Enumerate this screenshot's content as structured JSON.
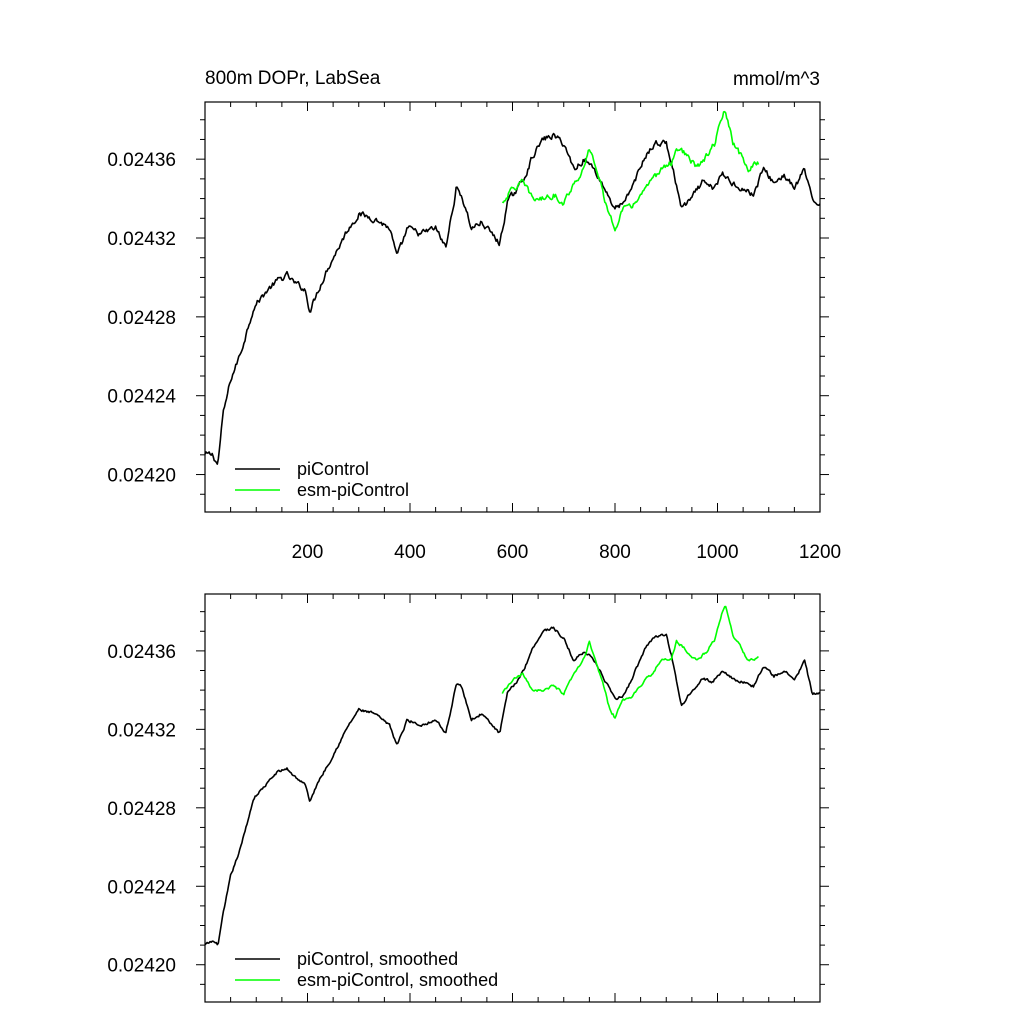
{
  "title_left": "800m DOPr, LabSea",
  "title_right": "mmol/m^3",
  "chart_data": [
    {
      "type": "line",
      "xlim": [
        0,
        1200
      ],
      "ylim": [
        0.024181,
        0.024389
      ],
      "x_ticks": [
        "200",
        "400",
        "600",
        "800",
        "1000",
        "1200"
      ],
      "y_ticks": [
        "0.02420",
        "0.02424",
        "0.02428",
        "0.02432",
        "0.02436"
      ],
      "legend_position": "bottom-left",
      "series": [
        {
          "name": "piControl",
          "color": "#000000",
          "noise": 1.3e-06,
          "points": [
            [
              0,
              0.02421
            ],
            [
              15,
              0.02421
            ],
            [
              25,
              0.024205
            ],
            [
              35,
              0.02423
            ],
            [
              50,
              0.024248
            ],
            [
              70,
              0.024262
            ],
            [
              95,
              0.024285
            ],
            [
              120,
              0.024293
            ],
            [
              140,
              0.024298
            ],
            [
              160,
              0.024301
            ],
            [
              175,
              0.024297
            ],
            [
              195,
              0.024294
            ],
            [
              205,
              0.024283
            ],
            [
              220,
              0.024293
            ],
            [
              240,
              0.024305
            ],
            [
              260,
              0.024315
            ],
            [
              280,
              0.024325
            ],
            [
              300,
              0.024332
            ],
            [
              330,
              0.02433
            ],
            [
              360,
              0.024325
            ],
            [
              375,
              0.02431
            ],
            [
              395,
              0.024325
            ],
            [
              420,
              0.024322
            ],
            [
              450,
              0.024325
            ],
            [
              470,
              0.024315
            ],
            [
              490,
              0.024345
            ],
            [
              500,
              0.024342
            ],
            [
              520,
              0.024325
            ],
            [
              540,
              0.024328
            ],
            [
              560,
              0.024322
            ],
            [
              575,
              0.024317
            ],
            [
              590,
              0.024338
            ],
            [
              610,
              0.024345
            ],
            [
              625,
              0.024352
            ],
            [
              640,
              0.024362
            ],
            [
              660,
              0.02437
            ],
            [
              680,
              0.024372
            ],
            [
              700,
              0.024368
            ],
            [
              720,
              0.024355
            ],
            [
              740,
              0.02436
            ],
            [
              760,
              0.024355
            ],
            [
              780,
              0.024345
            ],
            [
              800,
              0.024335
            ],
            [
              820,
              0.024338
            ],
            [
              840,
              0.02435
            ],
            [
              860,
              0.024362
            ],
            [
              880,
              0.024368
            ],
            [
              900,
              0.024368
            ],
            [
              910,
              0.024358
            ],
            [
              930,
              0.024335
            ],
            [
              950,
              0.02434
            ],
            [
              970,
              0.024348
            ],
            [
              990,
              0.024345
            ],
            [
              1010,
              0.024352
            ],
            [
              1030,
              0.024348
            ],
            [
              1050,
              0.024345
            ],
            [
              1070,
              0.024342
            ],
            [
              1090,
              0.024355
            ],
            [
              1110,
              0.024348
            ],
            [
              1130,
              0.024352
            ],
            [
              1150,
              0.024345
            ],
            [
              1170,
              0.024355
            ],
            [
              1185,
              0.024338
            ],
            [
              1200,
              0.024338
            ]
          ]
        },
        {
          "name": "esm-piControl",
          "color": "#00ff00",
          "noise": 1.3e-06,
          "points": [
            [
              580,
              0.024338
            ],
            [
              600,
              0.024345
            ],
            [
              620,
              0.024348
            ],
            [
              640,
              0.02434
            ],
            [
              660,
              0.02434
            ],
            [
              680,
              0.024342
            ],
            [
              700,
              0.024338
            ],
            [
              720,
              0.024348
            ],
            [
              740,
              0.024355
            ],
            [
              750,
              0.024365
            ],
            [
              760,
              0.024358
            ],
            [
              775,
              0.024345
            ],
            [
              790,
              0.02433
            ],
            [
              800,
              0.024325
            ],
            [
              815,
              0.024335
            ],
            [
              830,
              0.024335
            ],
            [
              850,
              0.024342
            ],
            [
              870,
              0.024348
            ],
            [
              890,
              0.024355
            ],
            [
              910,
              0.024358
            ],
            [
              920,
              0.024366
            ],
            [
              940,
              0.024362
            ],
            [
              960,
              0.024355
            ],
            [
              980,
              0.024362
            ],
            [
              995,
              0.024368
            ],
            [
              1005,
              0.024378
            ],
            [
              1015,
              0.024385
            ],
            [
              1030,
              0.024368
            ],
            [
              1045,
              0.024362
            ],
            [
              1060,
              0.024355
            ],
            [
              1080,
              0.024358
            ]
          ]
        }
      ]
    },
    {
      "type": "line",
      "xlim": [
        0,
        1200
      ],
      "ylim": [
        0.024181,
        0.024389
      ],
      "y_ticks": [
        "0.02420",
        "0.02424",
        "0.02428",
        "0.02432",
        "0.02436"
      ],
      "legend_position": "bottom-left",
      "series": [
        {
          "name": "piControl, smoothed",
          "color": "#000000",
          "noise": 6e-07,
          "points": [
            [
              0,
              0.02421
            ],
            [
              15,
              0.024212
            ],
            [
              25,
              0.02421
            ],
            [
              35,
              0.024225
            ],
            [
              50,
              0.024245
            ],
            [
              70,
              0.02426
            ],
            [
              95,
              0.024285
            ],
            [
              120,
              0.024292
            ],
            [
              140,
              0.024298
            ],
            [
              160,
              0.0243
            ],
            [
              175,
              0.024296
            ],
            [
              195,
              0.024292
            ],
            [
              205,
              0.024283
            ],
            [
              220,
              0.024293
            ],
            [
              240,
              0.024302
            ],
            [
              260,
              0.024312
            ],
            [
              280,
              0.024322
            ],
            [
              300,
              0.02433
            ],
            [
              330,
              0.024328
            ],
            [
              360,
              0.024322
            ],
            [
              375,
              0.024312
            ],
            [
              395,
              0.024325
            ],
            [
              420,
              0.024322
            ],
            [
              450,
              0.024325
            ],
            [
              470,
              0.024318
            ],
            [
              490,
              0.024343
            ],
            [
              500,
              0.024342
            ],
            [
              520,
              0.024325
            ],
            [
              540,
              0.024328
            ],
            [
              560,
              0.024322
            ],
            [
              575,
              0.024318
            ],
            [
              590,
              0.024338
            ],
            [
              610,
              0.024345
            ],
            [
              625,
              0.024352
            ],
            [
              640,
              0.024362
            ],
            [
              660,
              0.02437
            ],
            [
              680,
              0.024372
            ],
            [
              700,
              0.024366
            ],
            [
              720,
              0.024355
            ],
            [
              740,
              0.02436
            ],
            [
              760,
              0.024355
            ],
            [
              780,
              0.024345
            ],
            [
              800,
              0.024335
            ],
            [
              820,
              0.024338
            ],
            [
              840,
              0.02435
            ],
            [
              860,
              0.024362
            ],
            [
              880,
              0.024368
            ],
            [
              900,
              0.024368
            ],
            [
              910,
              0.024358
            ],
            [
              930,
              0.024332
            ],
            [
              950,
              0.02434
            ],
            [
              970,
              0.024346
            ],
            [
              990,
              0.024344
            ],
            [
              1010,
              0.02435
            ],
            [
              1030,
              0.024346
            ],
            [
              1050,
              0.024344
            ],
            [
              1070,
              0.024342
            ],
            [
              1090,
              0.024352
            ],
            [
              1110,
              0.024347
            ],
            [
              1130,
              0.02435
            ],
            [
              1150,
              0.024345
            ],
            [
              1170,
              0.024355
            ],
            [
              1185,
              0.024338
            ],
            [
              1200,
              0.024338
            ]
          ]
        },
        {
          "name": "esm-piControl, smoothed",
          "color": "#00ff00",
          "noise": 6e-07,
          "points": [
            [
              580,
              0.024338
            ],
            [
              600,
              0.024345
            ],
            [
              620,
              0.024348
            ],
            [
              640,
              0.02434
            ],
            [
              660,
              0.02434
            ],
            [
              680,
              0.024342
            ],
            [
              700,
              0.024338
            ],
            [
              720,
              0.024348
            ],
            [
              740,
              0.024356
            ],
            [
              750,
              0.024365
            ],
            [
              760,
              0.024356
            ],
            [
              775,
              0.024345
            ],
            [
              790,
              0.02433
            ],
            [
              800,
              0.024326
            ],
            [
              815,
              0.024335
            ],
            [
              830,
              0.024336
            ],
            [
              850,
              0.024342
            ],
            [
              870,
              0.024348
            ],
            [
              890,
              0.024355
            ],
            [
              910,
              0.024356
            ],
            [
              920,
              0.024365
            ],
            [
              940,
              0.02436
            ],
            [
              960,
              0.024355
            ],
            [
              980,
              0.02436
            ],
            [
              995,
              0.024366
            ],
            [
              1005,
              0.024376
            ],
            [
              1015,
              0.024384
            ],
            [
              1030,
              0.024368
            ],
            [
              1045,
              0.024362
            ],
            [
              1060,
              0.024355
            ],
            [
              1080,
              0.024357
            ]
          ]
        }
      ]
    }
  ]
}
